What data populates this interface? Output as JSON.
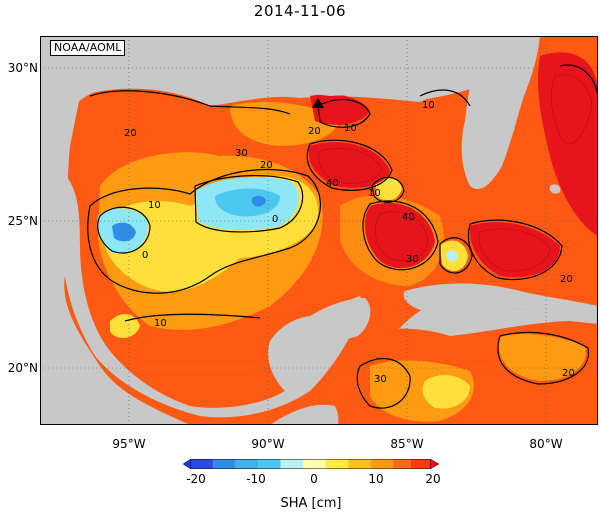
{
  "title": "2014-11-06",
  "credit": "NOAA/AOML",
  "lat_labels": [
    "30°N",
    "25°N",
    "20°N"
  ],
  "lon_labels": [
    "95°W",
    "90°W",
    "85°W",
    "80°W"
  ],
  "contour_labels": [
    "10",
    "20",
    "30",
    "40",
    "0"
  ],
  "colorbar": {
    "ticks": [
      "-20",
      "-10",
      "0",
      "10",
      "20"
    ],
    "label": "SHA [cm]",
    "range": [
      -20,
      20
    ],
    "colors": [
      "#2a4be0",
      "#2f8ce8",
      "#4cc7ee",
      "#b8f0f8",
      "#ffffb0",
      "#ffeb40",
      "#ffc21c",
      "#ff9b12",
      "#ff6a14",
      "#ff3a10",
      "#e8141c"
    ]
  },
  "map": {
    "land_color": "#c8c8c8",
    "ocean_base_color": "#ff7a14",
    "marker": "triangle"
  }
}
